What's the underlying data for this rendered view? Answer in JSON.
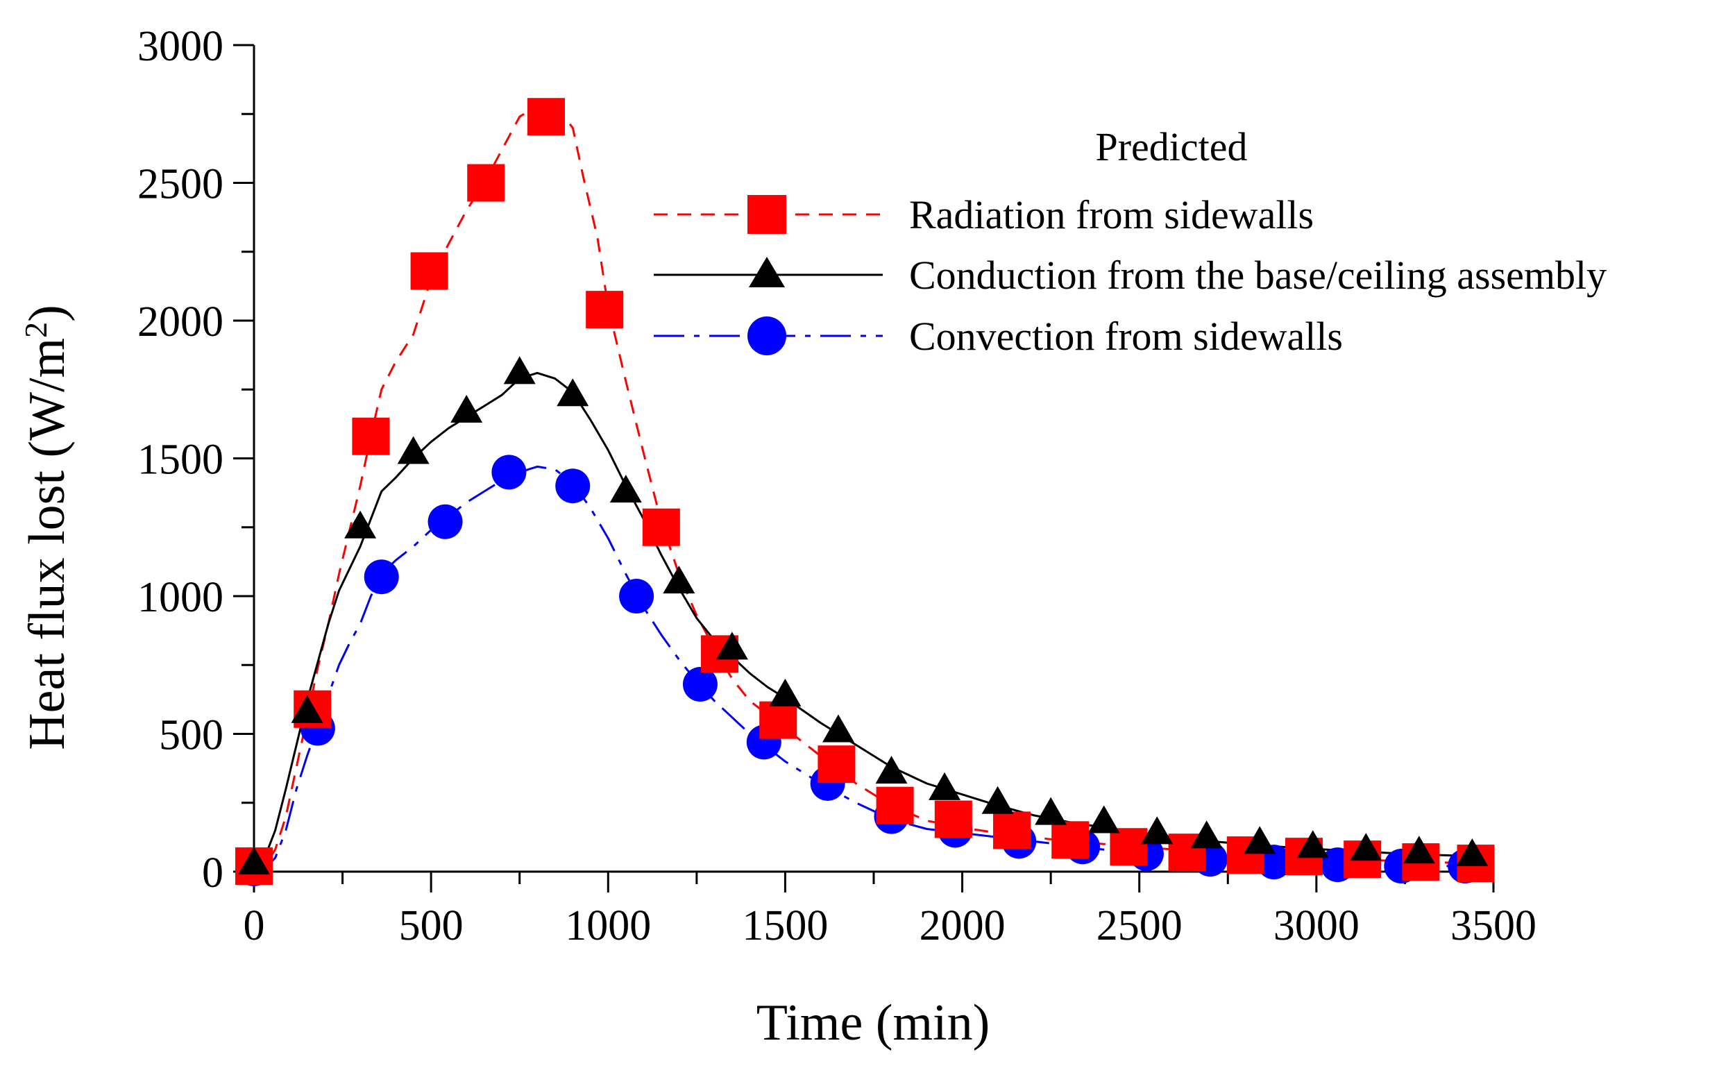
{
  "chart_data": {
    "type": "line",
    "title": "",
    "xlabel": "Time (min)",
    "ylabel_main": "Heat flux lost (W/m",
    "ylabel_sup": "2",
    "ylabel_close": ")",
    "xlim": [
      0,
      3500
    ],
    "ylim": [
      0,
      3000
    ],
    "xticks": [
      0,
      500,
      1000,
      1500,
      2000,
      2500,
      3000,
      3500
    ],
    "yticks": [
      0,
      500,
      1000,
      1500,
      2000,
      2500,
      3000
    ],
    "xtick_labels": [
      "0",
      "500",
      "1000",
      "1500",
      "2000",
      "2500",
      "3000",
      "3500"
    ],
    "ytick_labels": [
      "0",
      "500",
      "1000",
      "1500",
      "2000",
      "2500",
      "3000"
    ],
    "legend": {
      "title": "Predicted",
      "placement": "top-right"
    },
    "series": [
      {
        "name": "Radiation from sidewalls",
        "color": "#ff0000",
        "marker": "square",
        "line_style": "dashed",
        "line": {
          "x": [
            0,
            30,
            60,
            90,
            120,
            150,
            180,
            210,
            240,
            270,
            300,
            330,
            360,
            400,
            450,
            500,
            550,
            600,
            650,
            700,
            750,
            800,
            850,
            900,
            930,
            970,
            1000,
            1050,
            1100,
            1150,
            1200,
            1250,
            1300,
            1350,
            1400,
            1450,
            1500,
            1600,
            1700,
            1800,
            1900,
            2000,
            2100,
            2200,
            2300,
            2400,
            2500,
            2600,
            2700,
            2800,
            2900,
            3000,
            3100,
            3200,
            3300,
            3400,
            3450
          ],
          "y": [
            0,
            20,
            80,
            200,
            380,
            560,
            740,
            900,
            1080,
            1240,
            1400,
            1580,
            1750,
            1850,
            1950,
            2150,
            2280,
            2400,
            2500,
            2620,
            2740,
            2780,
            2780,
            2700,
            2520,
            2300,
            2050,
            1780,
            1520,
            1270,
            1080,
            930,
            810,
            700,
            620,
            570,
            520,
            420,
            320,
            240,
            185,
            160,
            140,
            125,
            110,
            100,
            90,
            80,
            70,
            60,
            55,
            50,
            45,
            40,
            35,
            32,
            30
          ]
        },
        "points": {
          "x": [
            0,
            165,
            330,
            495,
            655,
            825,
            990,
            1150,
            1315,
            1480,
            1645,
            1810,
            1975,
            2140,
            2305,
            2470,
            2635,
            2800,
            2965,
            3130,
            3295,
            3450
          ],
          "y": [
            20,
            590,
            1580,
            2180,
            2500,
            2740,
            2040,
            1250,
            790,
            550,
            390,
            240,
            190,
            150,
            115,
            90,
            70,
            60,
            55,
            45,
            35,
            30
          ]
        }
      },
      {
        "name": "Conduction from the base/ceiling assembly",
        "color": "#000000",
        "marker": "triangle",
        "line_style": "solid",
        "line": {
          "x": [
            0,
            30,
            60,
            90,
            120,
            150,
            180,
            210,
            240,
            270,
            300,
            330,
            360,
            400,
            450,
            500,
            550,
            600,
            650,
            700,
            750,
            800,
            850,
            900,
            950,
            1000,
            1050,
            1100,
            1150,
            1200,
            1250,
            1300,
            1350,
            1400,
            1450,
            1500,
            1600,
            1700,
            1800,
            1900,
            2000,
            2100,
            2200,
            2300,
            2400,
            2500,
            2600,
            2700,
            2800,
            2900,
            3000,
            3100,
            3200,
            3300,
            3400,
            3450
          ],
          "y": [
            0,
            50,
            150,
            300,
            460,
            620,
            760,
            900,
            1020,
            1100,
            1180,
            1280,
            1380,
            1430,
            1500,
            1560,
            1610,
            1650,
            1690,
            1730,
            1790,
            1810,
            1790,
            1740,
            1640,
            1530,
            1400,
            1280,
            1150,
            1030,
            920,
            840,
            780,
            720,
            670,
            630,
            540,
            460,
            380,
            320,
            280,
            240,
            205,
            180,
            160,
            140,
            125,
            110,
            100,
            90,
            82,
            75,
            68,
            62,
            58,
            55
          ]
        },
        "points": {
          "x": [
            0,
            150,
            300,
            450,
            600,
            750,
            900,
            1050,
            1200,
            1350,
            1500,
            1650,
            1800,
            1950,
            2100,
            2250,
            2400,
            2550,
            2690,
            2840,
            2990,
            3140,
            3290,
            3440
          ],
          "y": [
            30,
            580,
            1250,
            1520,
            1670,
            1810,
            1730,
            1380,
            1050,
            810,
            640,
            510,
            360,
            300,
            250,
            210,
            180,
            140,
            125,
            105,
            90,
            80,
            70,
            60
          ]
        }
      },
      {
        "name": "Convection from sidewalls",
        "color": "#0000ff",
        "marker": "circle",
        "line_style": "dashdot",
        "line": {
          "x": [
            0,
            30,
            60,
            90,
            120,
            150,
            180,
            210,
            240,
            270,
            300,
            330,
            360,
            400,
            450,
            500,
            550,
            600,
            650,
            700,
            750,
            800,
            850,
            900,
            950,
            1000,
            1050,
            1100,
            1150,
            1200,
            1250,
            1300,
            1350,
            1400,
            1450,
            1500,
            1600,
            1700,
            1800,
            1900,
            2000,
            2100,
            2200,
            2300,
            2400,
            2500,
            2600,
            2700,
            2800,
            2900,
            3000,
            3100,
            3200,
            3300,
            3400,
            3450
          ],
          "y": [
            0,
            10,
            50,
            150,
            300,
            420,
            530,
            640,
            750,
            830,
            900,
            1000,
            1080,
            1130,
            1180,
            1240,
            1290,
            1340,
            1380,
            1420,
            1450,
            1470,
            1460,
            1410,
            1320,
            1210,
            1080,
            960,
            860,
            770,
            690,
            620,
            560,
            500,
            450,
            400,
            320,
            250,
            190,
            155,
            140,
            125,
            110,
            95,
            80,
            65,
            55,
            45,
            40,
            35,
            30,
            27,
            25,
            22,
            20,
            20
          ]
        },
        "points": {
          "x": [
            0,
            180,
            360,
            540,
            720,
            900,
            1080,
            1260,
            1440,
            1620,
            1800,
            1980,
            2160,
            2340,
            2520,
            2700,
            2880,
            3060,
            3240,
            3420
          ],
          "y": [
            10,
            520,
            1070,
            1270,
            1450,
            1400,
            1000,
            680,
            470,
            320,
            200,
            150,
            110,
            90,
            65,
            45,
            35,
            25,
            20,
            20
          ]
        }
      }
    ]
  }
}
